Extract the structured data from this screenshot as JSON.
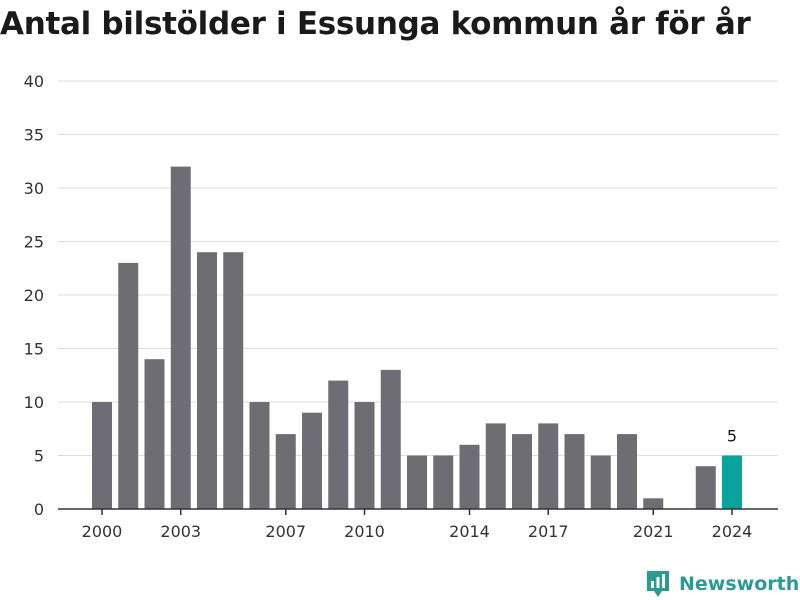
{
  "chart_data": {
    "type": "bar",
    "title": "Antal bilstölder i Essunga kommun år för år",
    "categories": [
      "2000",
      "2001",
      "2002",
      "2003",
      "2004",
      "2005",
      "2006",
      "2007",
      "2008",
      "2009",
      "2010",
      "2011",
      "2012",
      "2013",
      "2014",
      "2015",
      "2016",
      "2017",
      "2018",
      "2019",
      "2020",
      "2021",
      "2022",
      "2023",
      "2024"
    ],
    "values": [
      10,
      23,
      14,
      32,
      24,
      24,
      10,
      7,
      9,
      12,
      10,
      13,
      5,
      5,
      6,
      8,
      7,
      8,
      7,
      5,
      7,
      1,
      0,
      4,
      5
    ],
    "x_tick_labels": [
      "2000",
      "2003",
      "2007",
      "2010",
      "2014",
      "2017",
      "2021",
      "2024"
    ],
    "y_ticks": [
      0,
      5,
      10,
      15,
      20,
      25,
      30,
      35,
      40
    ],
    "ylim": [
      0,
      40
    ],
    "xlabel": "",
    "ylabel": "",
    "grid": true,
    "highlight": {
      "category": "2024",
      "label": "5"
    },
    "colors": {
      "bar": "#6e6d73",
      "highlight": "#0aa39a",
      "grid": "#dddddd",
      "axis": "#333333"
    }
  },
  "brand": {
    "name": "Newsworthy",
    "icon": "bar-chart-logo-icon",
    "color": "#2a9b93"
  }
}
